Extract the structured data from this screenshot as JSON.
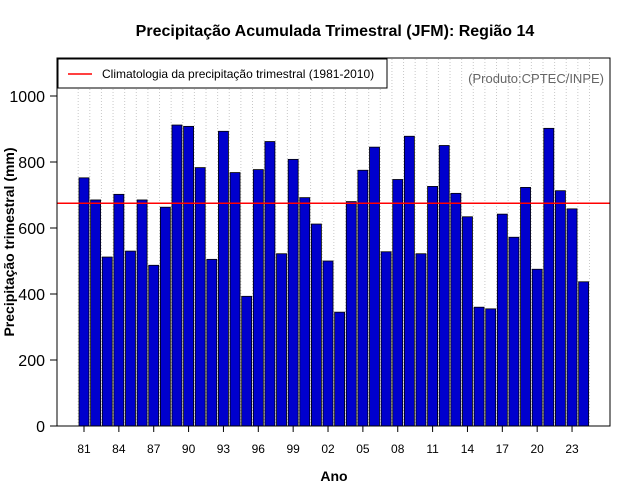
{
  "chart_data": {
    "type": "bar",
    "title": "Precipitação Acumulada Trimestral (JFM): Região 14",
    "xlabel": "Ano",
    "ylabel": "Precipitação trimestral (mm)",
    "ylim": [
      0,
      1100
    ],
    "yticks": [
      0,
      200,
      400,
      600,
      800,
      1000
    ],
    "x_tick_labels": [
      "81",
      "84",
      "87",
      "90",
      "93",
      "96",
      "99",
      "02",
      "05",
      "08",
      "11",
      "14",
      "17",
      "20",
      "23"
    ],
    "x_tick_years": [
      1981,
      1984,
      1987,
      1990,
      1993,
      1996,
      1999,
      2002,
      2005,
      2008,
      2011,
      2014,
      2017,
      2020,
      2023
    ],
    "categories": [
      1981,
      1982,
      1983,
      1984,
      1985,
      1986,
      1987,
      1988,
      1989,
      1990,
      1991,
      1992,
      1993,
      1994,
      1995,
      1996,
      1997,
      1998,
      1999,
      2000,
      2001,
      2002,
      2003,
      2004,
      2005,
      2006,
      2007,
      2008,
      2009,
      2010,
      2011,
      2012,
      2013,
      2014,
      2015,
      2016,
      2017,
      2018,
      2019,
      2020,
      2021,
      2022,
      2023,
      2024
    ],
    "values": [
      752,
      685,
      512,
      702,
      530,
      685,
      487,
      663,
      912,
      908,
      783,
      505,
      893,
      768,
      393,
      777,
      862,
      522,
      808,
      692,
      612,
      500,
      345,
      680,
      775,
      845,
      528,
      747,
      878,
      522,
      726,
      850,
      705,
      634,
      360,
      355,
      642,
      572,
      723,
      475,
      902,
      713,
      658,
      437
    ],
    "bar_color": "#0000cd",
    "reference_line": {
      "value": 675,
      "label": "Climatologia da precipitação trimestral (1981-2010)",
      "color": "#ff0000"
    },
    "grid": "vertical-dotted",
    "legend": "top-left",
    "credit": "(Produto:CPTEC/INPE)"
  }
}
